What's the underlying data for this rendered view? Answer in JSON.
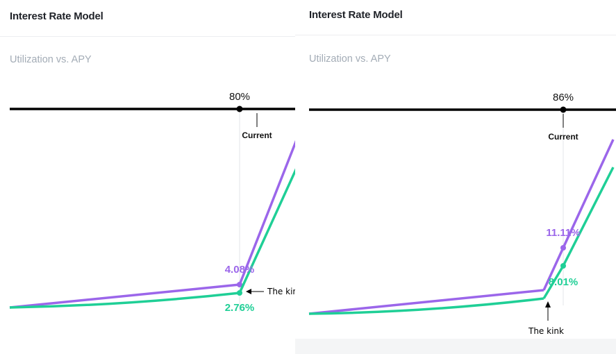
{
  "colors": {
    "borrow": "#9b66ea",
    "supply": "#1fcf96",
    "axis": "#000000",
    "title": "#1f2228",
    "subtitle": "#a3acb6"
  },
  "panels": [
    {
      "title": "Interest Rate Model",
      "subtitle": "Utilization vs. APY",
      "current_label": "80%",
      "current_caption": "Current",
      "borrow_label": "4.08%",
      "supply_label": "2.76%",
      "annotation": "The kink"
    },
    {
      "title": "Interest Rate Model",
      "subtitle": "Utilization vs. APY",
      "current_label": "86%",
      "current_caption": "Current",
      "borrow_label": "11.11%",
      "supply_label": "8.01%",
      "annotation": "The kink"
    }
  ],
  "chart_data": [
    {
      "type": "line",
      "title": "Utilization vs. APY",
      "xlabel": "",
      "ylabel": "",
      "xlim": [
        0,
        100
      ],
      "kink": 80,
      "current": 80,
      "current_label": "80%",
      "series": [
        {
          "x": [
            0,
            80,
            100
          ],
          "y": [
            0.0,
            4.08,
            30.0
          ],
          "point_label": "4.08%",
          "color": "#9b66ea"
        },
        {
          "x": [
            0,
            80,
            100
          ],
          "y": [
            0.0,
            2.76,
            24.0
          ],
          "point_label": "2.76%",
          "color": "#1fcf96"
        }
      ],
      "annotations": [
        "Current",
        "The kink"
      ],
      "grid": false,
      "legend": "none"
    },
    {
      "type": "line",
      "title": "Utilization vs. APY",
      "xlabel": "",
      "ylabel": "",
      "xlim": [
        0,
        100
      ],
      "kink": 80,
      "current": 86,
      "current_label": "86%",
      "series": [
        {
          "x": [
            0,
            80,
            86,
            100
          ],
          "y": [
            0.0,
            4.1,
            11.11,
            29.0
          ],
          "point_label": "11.11%",
          "color": "#9b66ea"
        },
        {
          "x": [
            0,
            80,
            86,
            100
          ],
          "y": [
            0.0,
            2.8,
            8.01,
            25.0
          ],
          "point_label": "8.01%",
          "color": "#1fcf96"
        }
      ],
      "annotations": [
        "Current",
        "The kink"
      ],
      "grid": false,
      "legend": "none"
    }
  ]
}
